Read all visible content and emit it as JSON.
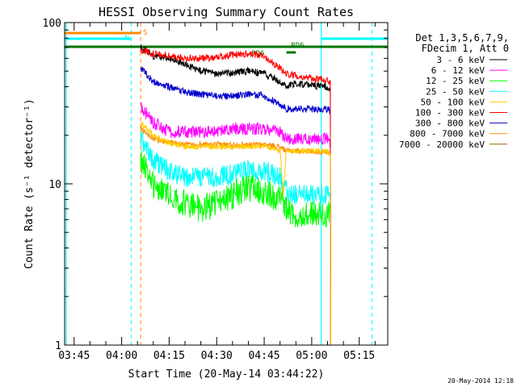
{
  "chart_data": {
    "type": "line",
    "title": "HESSI Observing Summary Count Rates",
    "xlabel": "Start Time (20-May-14 03:44:22)",
    "ylabel": "Count Rate (s⁻¹ detector⁻¹)",
    "y_scale": "log",
    "ylim": [
      1,
      100
    ],
    "xlim": [
      "03:42",
      "05:24"
    ],
    "x_ticks": [
      "03:45",
      "04:00",
      "04:15",
      "04:30",
      "04:45",
      "05:00",
      "05:15"
    ],
    "y_ticks": [
      "1",
      "10",
      "100"
    ],
    "legend": {
      "placement": "right",
      "header": [
        "Det 1,3,5,6,7,9,",
        "FDecim 1, Att 0"
      ]
    },
    "series": [
      {
        "name": "3 - 6 keV",
        "color": "#000000",
        "x": [
          "04:06",
          "04:10",
          "04:15",
          "04:20",
          "04:25",
          "04:30",
          "04:35",
          "04:40",
          "04:45",
          "04:50",
          "04:52",
          "04:55",
          "05:00",
          "05:05",
          "05:06"
        ],
        "y": [
          70,
          62,
          60,
          55,
          50,
          48,
          49,
          50,
          48,
          43,
          40,
          42,
          41,
          40,
          38
        ]
      },
      {
        "name": "6 - 12 keV",
        "color": "#ff00ff",
        "x": [
          "04:06",
          "04:10",
          "04:15",
          "04:20",
          "04:25",
          "04:30",
          "04:35",
          "04:40",
          "04:45",
          "04:50",
          "04:52",
          "04:55",
          "05:00",
          "05:05",
          "05:06"
        ],
        "y": [
          30,
          24,
          21,
          21,
          21,
          21,
          22,
          22,
          22,
          21,
          19,
          19,
          19,
          19,
          18
        ]
      },
      {
        "name": "12 - 25 keV",
        "color": "#00ff00",
        "x": [
          "04:06",
          "04:10",
          "04:15",
          "04:20",
          "04:25",
          "04:30",
          "04:35",
          "04:40",
          "04:45",
          "04:50",
          "04:52",
          "04:55",
          "05:00",
          "05:05",
          "05:06"
        ],
        "y": [
          14,
          10,
          8.5,
          7.5,
          7,
          7.5,
          8.5,
          9.5,
          9,
          8,
          7,
          6.5,
          6.5,
          6.5,
          6.5
        ]
      },
      {
        "name": "25 - 50 keV",
        "color": "#00ffff",
        "x": [
          "04:06",
          "04:10",
          "04:15",
          "04:20",
          "04:25",
          "04:30",
          "04:35",
          "04:40",
          "04:45",
          "04:50",
          "04:52",
          "04:55",
          "05:00",
          "05:05",
          "05:06"
        ],
        "y": [
          19,
          14,
          12,
          11,
          11,
          11,
          11.5,
          12,
          12,
          11,
          9,
          8.5,
          8.5,
          8.5,
          8.5
        ]
      },
      {
        "name": "50 - 100 keV",
        "color": "#ffcc00",
        "x": [
          "04:06",
          "04:10",
          "04:15",
          "04:20",
          "04:25",
          "04:30",
          "04:35",
          "04:40",
          "04:45",
          "04:50",
          "04:51",
          "04:52",
          "04:55",
          "05:00",
          "05:05",
          "05:06"
        ],
        "y": [
          24,
          20,
          18,
          17,
          17,
          17,
          17,
          17,
          17,
          16,
          8,
          16,
          16,
          16,
          16,
          15
        ]
      },
      {
        "name": "100 - 300 keV",
        "color": "#ff0000",
        "x": [
          "04:06",
          "04:10",
          "04:15",
          "04:20",
          "04:25",
          "04:30",
          "04:35",
          "04:40",
          "04:45",
          "04:50",
          "04:52",
          "04:55",
          "05:00",
          "05:05",
          "05:06"
        ],
        "y": [
          68,
          64,
          62,
          60,
          60,
          61,
          63,
          64,
          62,
          52,
          48,
          47,
          45,
          44,
          42
        ]
      },
      {
        "name": "300 - 800 keV",
        "color": "#0000cc",
        "x": [
          "04:06",
          "04:10",
          "04:15",
          "04:20",
          "04:25",
          "04:30",
          "04:35",
          "04:40",
          "04:45",
          "04:50",
          "04:52",
          "04:55",
          "05:00",
          "05:05",
          "05:06"
        ],
        "y": [
          52,
          43,
          40,
          37,
          36,
          35,
          35,
          36,
          35,
          31,
          29,
          29,
          29,
          29,
          28
        ]
      },
      {
        "name": "800 - 7000 keV",
        "color": "#ff8c00",
        "x": [
          "04:06",
          "04:10",
          "04:15",
          "04:20",
          "04:25",
          "04:30",
          "04:35",
          "04:40",
          "04:45",
          "04:50",
          "04:52",
          "04:55",
          "05:00",
          "05:05",
          "05:06"
        ],
        "y": [
          22,
          19,
          18,
          17.5,
          17.5,
          17.5,
          17.5,
          17.5,
          17.5,
          17,
          16,
          16,
          16,
          15.5,
          15
        ]
      },
      {
        "name": "7000 - 20000 keV",
        "color": "#996600",
        "x": [],
        "y": []
      }
    ],
    "annotations": [
      {
        "text": "S",
        "color": "#ff8c00"
      },
      {
        "text": "N",
        "color": "#00ffff"
      },
      {
        "text": "RD6",
        "color": "#007700"
      },
      {
        "text": "RD6",
        "color": "#007700"
      }
    ],
    "footer_date": "20-May-2014 12:18"
  }
}
